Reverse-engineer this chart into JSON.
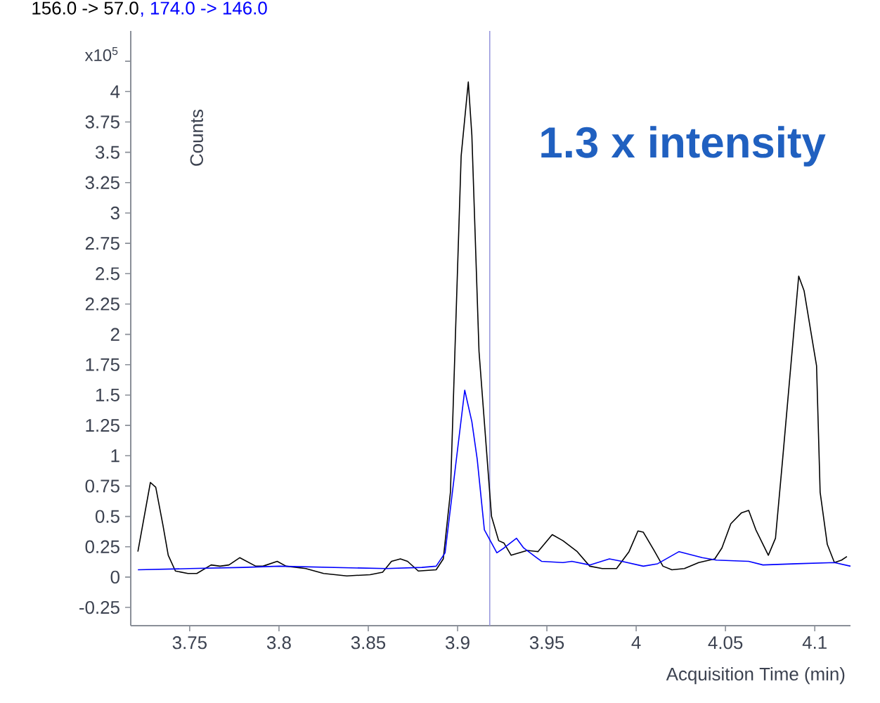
{
  "chart_data": {
    "type": "line",
    "xlabel": "Acquisition Time (min)",
    "ylabel": "Counts",
    "annotations": [
      "x10$^{5}$",
      "1.3 x intensity"
    ],
    "legend": "top left",
    "xlim": [
      3.717,
      4.12
    ],
    "ylim": [
      -0.4,
      4.5
    ],
    "xticks": [
      3.75,
      3.8,
      3.85,
      3.9,
      3.95,
      4,
      4.05,
      4.1
    ],
    "yticks": [
      -0.25,
      0,
      0.25,
      0.5,
      0.75,
      1,
      1.25,
      1.5,
      1.75,
      2,
      2.25,
      2.5,
      2.75,
      3,
      3.25,
      3.5,
      3.75,
      4,
      {
        "value": 4.25,
        "label": null
      }
    ],
    "ref_lines": [
      {
        "axis": "x",
        "value": 3.918,
        "color": "#9999dd"
      }
    ],
    "series": [
      {
        "name": "156.0 -> 57.0",
        "color": "#000000",
        "x": [
          3.721,
          3.728,
          3.731,
          3.735,
          3.738,
          3.742,
          3.749,
          3.754,
          3.762,
          3.767,
          3.772,
          3.778,
          3.787,
          3.791,
          3.799,
          3.804,
          3.815,
          3.825,
          3.838,
          3.851,
          3.858,
          3.863,
          3.868,
          3.872,
          3.878,
          3.888,
          3.892,
          3.896,
          3.902,
          3.906,
          3.908,
          3.912,
          3.919,
          3.923,
          3.926,
          3.93,
          3.939,
          3.945,
          3.953,
          3.959,
          3.967,
          3.974,
          3.981,
          3.989,
          3.996,
          4.001,
          4.004,
          4.01,
          4.015,
          4.02,
          4.027,
          4.035,
          4.044,
          4.048,
          4.053,
          4.059,
          4.063,
          4.067,
          4.074,
          4.078,
          4.082,
          4.091,
          4.094,
          4.101,
          4.103,
          4.107,
          4.111,
          4.115,
          4.118
        ],
        "values": [
          0.21,
          0.78,
          0.74,
          0.43,
          0.18,
          0.05,
          0.03,
          0.03,
          0.1,
          0.09,
          0.1,
          0.16,
          0.09,
          0.09,
          0.13,
          0.09,
          0.07,
          0.03,
          0.01,
          0.02,
          0.04,
          0.13,
          0.15,
          0.13,
          0.05,
          0.06,
          0.15,
          0.7,
          3.47,
          4.08,
          3.64,
          1.86,
          0.5,
          0.3,
          0.28,
          0.18,
          0.22,
          0.21,
          0.35,
          0.3,
          0.21,
          0.09,
          0.07,
          0.07,
          0.21,
          0.38,
          0.37,
          0.22,
          0.09,
          0.06,
          0.07,
          0.12,
          0.15,
          0.24,
          0.44,
          0.53,
          0.55,
          0.39,
          0.18,
          0.32,
          0.97,
          2.48,
          2.36,
          1.74,
          0.7,
          0.27,
          0.12,
          0.14,
          0.17
        ]
      },
      {
        "name": ", 174.0 -> 146.0",
        "color": "#0000ff",
        "x": [
          3.721,
          3.75,
          3.78,
          3.8,
          3.83,
          3.86,
          3.88,
          3.888,
          3.893,
          3.904,
          3.908,
          3.911,
          3.915,
          3.922,
          3.926,
          3.933,
          3.937,
          3.947,
          3.959,
          3.964,
          3.974,
          3.985,
          3.992,
          4.004,
          4.012,
          4.024,
          4.037,
          4.045,
          4.063,
          4.071,
          4.09,
          4.111,
          4.12
        ],
        "values": [
          0.06,
          0.07,
          0.08,
          0.09,
          0.08,
          0.07,
          0.08,
          0.09,
          0.2,
          1.54,
          1.28,
          0.97,
          0.39,
          0.2,
          0.24,
          0.32,
          0.24,
          0.13,
          0.12,
          0.13,
          0.1,
          0.15,
          0.13,
          0.09,
          0.11,
          0.21,
          0.16,
          0.14,
          0.13,
          0.1,
          0.11,
          0.12,
          0.09
        ]
      }
    ]
  }
}
